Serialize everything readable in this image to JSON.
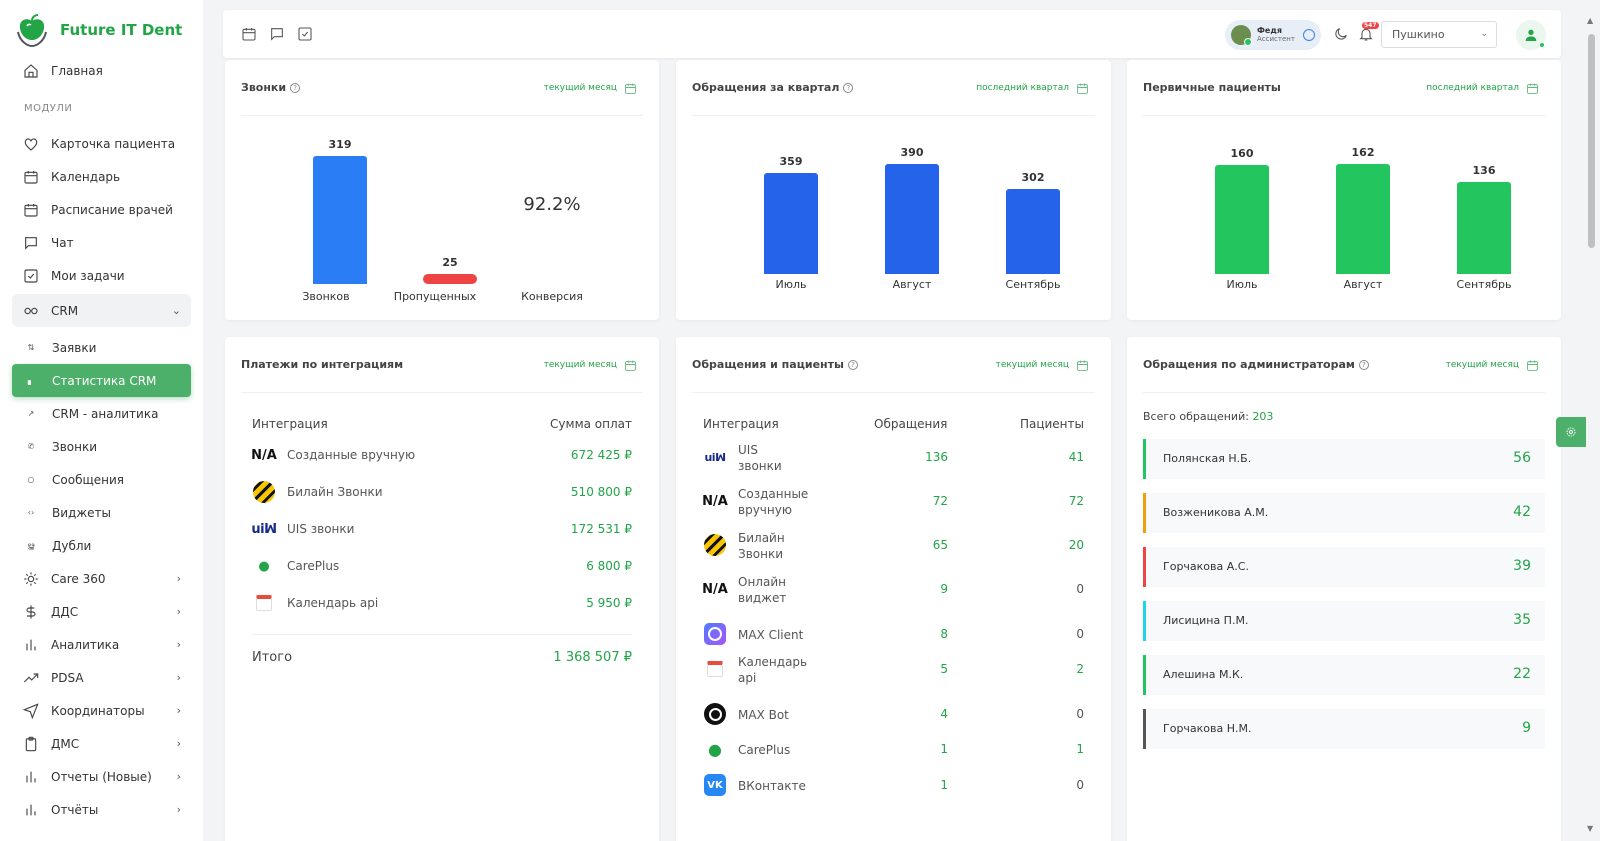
{
  "brand": {
    "name": "Future IT Dent"
  },
  "sidebar": {
    "home": "Главная",
    "section": "МОДУЛИ",
    "items": [
      {
        "label": "Карточка пациента",
        "icon": "heart-icon"
      },
      {
        "label": "Календарь",
        "icon": "calendar-icon"
      },
      {
        "label": "Расписание врачей",
        "icon": "calendar-icon"
      },
      {
        "label": "Чат",
        "icon": "chat-icon"
      },
      {
        "label": "Мои задачи",
        "icon": "tasks-icon"
      }
    ],
    "crm": "CRM",
    "crm_sub": [
      {
        "label": "Заявки",
        "icon": "sort-icon"
      },
      {
        "label": "Статистика CRM",
        "icon": "stats-icon"
      },
      {
        "label": "CRM - аналитика",
        "icon": "trend-icon"
      },
      {
        "label": "Звонки",
        "icon": "phone-icon"
      },
      {
        "label": "Сообщения",
        "icon": "message-icon"
      },
      {
        "label": "Виджеты",
        "icon": "code-icon"
      },
      {
        "label": "Дубли",
        "icon": "users-icon"
      }
    ],
    "groups": [
      {
        "label": "Care 360",
        "icon": "sun-icon"
      },
      {
        "label": "ДДС",
        "icon": "dollar-icon"
      },
      {
        "label": "Аналитика",
        "icon": "bar-chart-icon"
      },
      {
        "label": "PDSA",
        "icon": "trending-up-icon"
      },
      {
        "label": "Координаторы",
        "icon": "send-icon"
      },
      {
        "label": "ДМС",
        "icon": "clipboard-icon"
      },
      {
        "label": "Отчеты (Новые)",
        "icon": "bar-chart-icon"
      },
      {
        "label": "Отчёты",
        "icon": "bar-chart-icon"
      }
    ]
  },
  "topbar": {
    "user_name": "Федя",
    "user_role": "Ассистент",
    "notifications": "547",
    "branch": "Пушкино"
  },
  "cards": {
    "calls": {
      "title": "Звонки",
      "period": "текущий месяц",
      "total_value": "319",
      "total_label": "Звонков",
      "missed_value": "25",
      "missed_label": "Пропущенных",
      "conversion_value": "92.2%",
      "conversion_label": "Конверсия"
    },
    "requests_quarter": {
      "title": "Обращения за квартал",
      "period": "последний квартал"
    },
    "primary_patients": {
      "title": "Первичные пациенты",
      "period": "последний квартал"
    },
    "payments": {
      "title": "Платежи по интеграциям",
      "period": "текущий месяц",
      "col_integration": "Интеграция",
      "col_sum": "Сумма оплат",
      "rows": [
        {
          "logo": "N/A",
          "name": "Созданные вручную",
          "sum": "672 425 ₽"
        },
        {
          "logo": "beeline",
          "name": "Билайн Звонки",
          "sum": "510 800 ₽"
        },
        {
          "logo": "uis",
          "name": "UIS звонки",
          "sum": "172 531 ₽"
        },
        {
          "logo": "careplus",
          "name": "CarePlus",
          "sum": "6 800 ₽"
        },
        {
          "logo": "calendar",
          "name": "Календарь api",
          "sum": "5 950 ₽"
        }
      ],
      "total_label": "Итого",
      "total_value": "1 368 507 ₽"
    },
    "requests_patients": {
      "title": "Обращения и пациенты",
      "period": "текущий месяц",
      "col_integration": "Интеграция",
      "col_requests": "Обращения",
      "col_patients": "Пациенты",
      "rows": [
        {
          "logo": "uis",
          "name1": "UIS",
          "name2": "звонки",
          "requests": "136",
          "patients": "41"
        },
        {
          "logo": "N/A",
          "name1": "Созданные",
          "name2": "вручную",
          "requests": "72",
          "patients": "72"
        },
        {
          "logo": "beeline",
          "name1": "Билайн",
          "name2": "Звонки",
          "requests": "65",
          "patients": "20"
        },
        {
          "logo": "N/A",
          "name1": "Онлайн",
          "name2": "виджет",
          "requests": "9",
          "patients": "0"
        },
        {
          "logo": "maxclient",
          "name1": "MAX Client",
          "name2": "",
          "requests": "8",
          "patients": "0"
        },
        {
          "logo": "calendar",
          "name1": "Календарь",
          "name2": "api",
          "requests": "5",
          "patients": "2"
        },
        {
          "logo": "maxbot",
          "name1": "MAX Bot",
          "name2": "",
          "requests": "4",
          "patients": "0"
        },
        {
          "logo": "careplus",
          "name1": "CarePlus",
          "name2": "",
          "requests": "1",
          "patients": "1"
        },
        {
          "logo": "vk",
          "name1": "ВКонтакте",
          "name2": "",
          "requests": "1",
          "patients": "0"
        }
      ]
    },
    "admins": {
      "title": "Обращения по администраторам",
      "period": "текущий месяц",
      "total_label": "Всего обращений:",
      "total_value": "203",
      "rows": [
        {
          "name": "Полянская Н.Б.",
          "count": "56",
          "color": "#22c55e"
        },
        {
          "name": "Возженикова А.М.",
          "count": "42",
          "color": "#f59e0b"
        },
        {
          "name": "Горчакова А.С.",
          "count": "39",
          "color": "#ef4444"
        },
        {
          "name": "Лисицина П.М.",
          "count": "35",
          "color": "#22d3ee"
        },
        {
          "name": "Алешина М.К.",
          "count": "22",
          "color": "#22c55e"
        },
        {
          "name": "Горчакова Н.М.",
          "count": "9",
          "color": "#555555"
        }
      ]
    }
  },
  "chart_data": [
    {
      "type": "bar",
      "title": "Звонки",
      "categories": [
        "Звонков",
        "Пропущенных"
      ],
      "values": [
        319,
        25
      ],
      "colors": [
        "#2a7df5",
        "#ef4444"
      ]
    },
    {
      "type": "bar",
      "title": "Обращения за квартал",
      "categories": [
        "Июль",
        "Август",
        "Сентябрь"
      ],
      "values": [
        359,
        390,
        302
      ],
      "color": "#2563eb"
    },
    {
      "type": "bar",
      "title": "Первичные пациенты",
      "categories": [
        "Июль",
        "Август",
        "Сентябрь"
      ],
      "values": [
        160,
        162,
        136
      ],
      "color": "#22c55e"
    }
  ]
}
